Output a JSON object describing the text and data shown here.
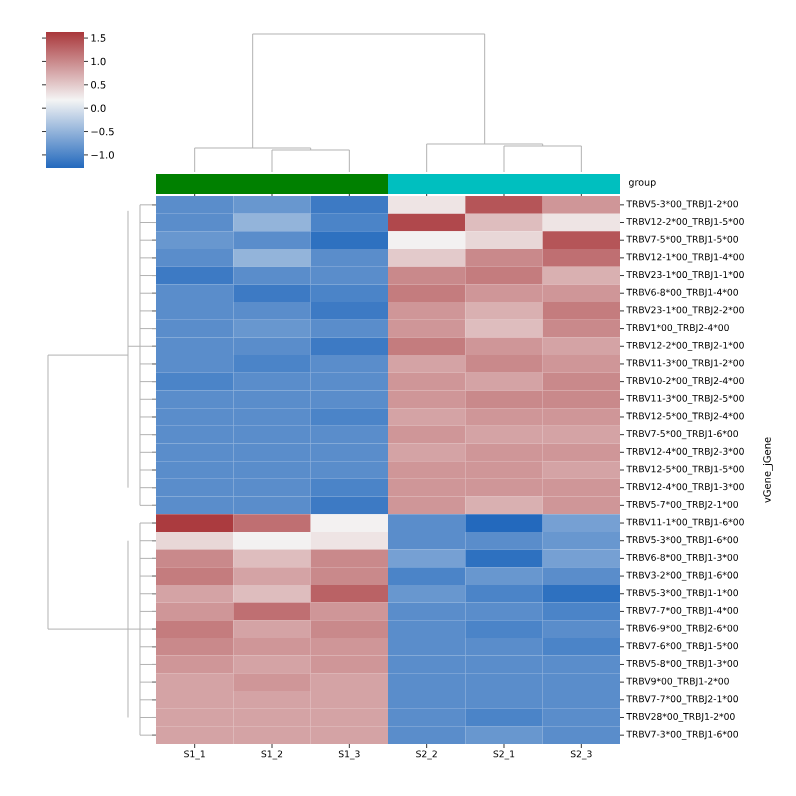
{
  "chart_data": {
    "type": "heatmap",
    "ylabel": "vGene_jGene",
    "annotations": [
      "group"
    ],
    "categories": [
      "S1_1",
      "S1_2",
      "S1_3",
      "S2_2",
      "S2_1",
      "S2_3"
    ],
    "y_categories": [
      "TRBV5-3*00_TRBJ1-2*00",
      "TRBV12-2*00_TRBJ1-5*00",
      "TRBV7-5*00_TRBJ1-5*00",
      "TRBV12-1*00_TRBJ1-4*00",
      "TRBV23-1*00_TRBJ1-1*00",
      "TRBV6-8*00_TRBJ1-4*00",
      "TRBV23-1*00_TRBJ2-2*00",
      "TRBV1*00_TRBJ2-4*00",
      "TRBV12-2*00_TRBJ2-1*00",
      "TRBV11-3*00_TRBJ1-2*00",
      "TRBV10-2*00_TRBJ2-4*00",
      "TRBV11-3*00_TRBJ2-5*00",
      "TRBV12-5*00_TRBJ2-4*00",
      "TRBV7-5*00_TRBJ1-6*00",
      "TRBV12-4*00_TRBJ2-3*00",
      "TRBV12-5*00_TRBJ1-5*00",
      "TRBV12-4*00_TRBJ1-3*00",
      "TRBV5-7*00_TRBJ2-1*00",
      "TRBV11-1*00_TRBJ1-6*00",
      "TRBV5-3*00_TRBJ1-6*00",
      "TRBV6-8*00_TRBJ1-3*00",
      "TRBV3-2*00_TRBJ1-6*00",
      "TRBV5-3*00_TRBJ1-1*00",
      "TRBV7-7*00_TRBJ1-4*00",
      "TRBV6-9*00_TRBJ2-6*00",
      "TRBV7-6*00_TRBJ1-5*00",
      "TRBV5-8*00_TRBJ1-3*00",
      "TRBV9*00_TRBJ1-2*00",
      "TRBV7-7*00_TRBJ2-1*00",
      "TRBV28*00_TRBJ1-2*00",
      "TRBV7-3*00_TRBJ1-6*00"
    ],
    "cells": [
      [
        -0.9,
        -0.8,
        -1.1,
        0.3,
        1.4,
        0.9
      ],
      [
        -0.9,
        -0.5,
        -1.0,
        1.5,
        0.6,
        0.3
      ],
      [
        -0.8,
        -0.9,
        -1.2,
        0.2,
        0.4,
        1.4
      ],
      [
        -0.9,
        -0.5,
        -0.9,
        0.5,
        1.0,
        1.2
      ],
      [
        -1.1,
        -0.9,
        -0.9,
        1.0,
        1.1,
        0.7
      ],
      [
        -0.9,
        -1.1,
        -1.0,
        1.1,
        0.9,
        0.9
      ],
      [
        -0.9,
        -0.9,
        -1.1,
        0.9,
        0.7,
        1.1
      ],
      [
        -0.9,
        -0.8,
        -0.9,
        0.9,
        0.6,
        1.0
      ],
      [
        -0.9,
        -0.9,
        -1.1,
        1.1,
        0.9,
        0.8
      ],
      [
        -0.9,
        -1.0,
        -0.9,
        0.8,
        1.0,
        0.9
      ],
      [
        -1.0,
        -0.9,
        -0.9,
        0.9,
        0.8,
        1.0
      ],
      [
        -0.9,
        -0.9,
        -0.9,
        0.9,
        1.0,
        1.0
      ],
      [
        -0.9,
        -0.9,
        -1.0,
        0.8,
        0.9,
        0.9
      ],
      [
        -0.9,
        -0.9,
        -0.9,
        0.9,
        0.8,
        0.8
      ],
      [
        -0.9,
        -0.9,
        -0.9,
        0.8,
        0.9,
        0.9
      ],
      [
        -0.9,
        -0.9,
        -0.9,
        0.9,
        0.9,
        0.8
      ],
      [
        -0.9,
        -0.9,
        -1.0,
        0.9,
        0.9,
        0.9
      ],
      [
        -0.9,
        -0.9,
        -1.1,
        0.9,
        0.7,
        0.9
      ],
      [
        1.6,
        1.2,
        0.2,
        -0.9,
        -1.3,
        -0.7
      ],
      [
        0.4,
        0.2,
        0.3,
        -0.9,
        -0.9,
        -0.8
      ],
      [
        1.0,
        0.6,
        1.0,
        -0.7,
        -1.2,
        -0.7
      ],
      [
        1.1,
        0.8,
        1.0,
        -1.0,
        -0.8,
        -0.9
      ],
      [
        0.8,
        0.6,
        1.3,
        -0.8,
        -1.0,
        -1.2
      ],
      [
        0.9,
        1.2,
        0.9,
        -0.9,
        -0.9,
        -1.0
      ],
      [
        1.1,
        0.8,
        1.0,
        -0.9,
        -1.0,
        -0.9
      ],
      [
        1.0,
        0.9,
        0.9,
        -0.9,
        -0.9,
        -1.0
      ],
      [
        0.9,
        0.8,
        0.9,
        -0.9,
        -0.9,
        -0.9
      ],
      [
        0.8,
        0.9,
        0.8,
        -0.9,
        -0.9,
        -0.9
      ],
      [
        0.8,
        0.8,
        0.8,
        -0.9,
        -0.9,
        -0.9
      ],
      [
        0.8,
        0.8,
        0.8,
        -0.9,
        -1.0,
        -0.9
      ],
      [
        0.8,
        0.8,
        0.8,
        -0.9,
        -0.8,
        -0.9
      ]
    ],
    "clim": [
      -1.28,
      1.63
    ],
    "cticks": [
      {
        "value": -1.0,
        "label": "−1.0"
      },
      {
        "value": -0.5,
        "label": "−0.5"
      },
      {
        "value": 0.0,
        "label": "0.0"
      },
      {
        "value": 0.5,
        "label": "0.5"
      },
      {
        "value": 1.0,
        "label": "1.0"
      },
      {
        "value": 1.5,
        "label": "1.5"
      }
    ]
  }
}
